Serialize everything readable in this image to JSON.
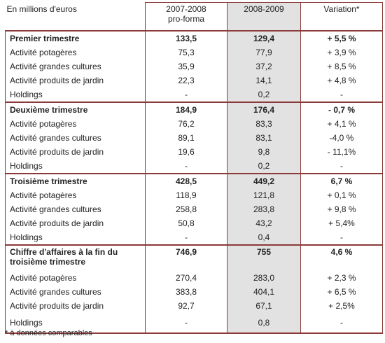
{
  "header": {
    "unit": "En millions d'euros",
    "columns": [
      [
        "2007-2008",
        "pro-forma"
      ],
      [
        "2008-2009"
      ],
      [
        "Variation*"
      ]
    ]
  },
  "sections": [
    {
      "rows": [
        [
          "Premier trimestre",
          "133,5",
          "129,4",
          "+ 5,5 %"
        ],
        [
          "Activité potagères",
          "75,3",
          "77,9",
          "+ 3,9 %"
        ],
        [
          "Activité grandes cultures",
          "35,9",
          "37,2",
          "+ 8,5 %"
        ],
        [
          "Activité produits de jardin",
          "22,3",
          "14,1",
          "+ 4,8 %"
        ],
        [
          "Holdings",
          "-",
          "0,2",
          "-"
        ]
      ]
    },
    {
      "rows": [
        [
          "Deuxième trimestre",
          "184,9",
          "176,4",
          "- 0,7 %"
        ],
        [
          "Activité potagères",
          "76,2",
          "83,3",
          "+ 4,1 %"
        ],
        [
          "Activité grandes cultures",
          "89,1",
          "83,1",
          "-4,0 %"
        ],
        [
          "Activité produits de jardin",
          "19,6",
          "9,8",
          "- 11,1%"
        ],
        [
          "Holdings",
          "-",
          "0,2",
          "-"
        ]
      ]
    },
    {
      "rows": [
        [
          "Troisième trimestre",
          "428,5",
          "449,2",
          "6,7 %"
        ],
        [
          "Activité potagères",
          "118,9",
          "121,8",
          "+ 0,1 %"
        ],
        [
          "Activité grandes cultures",
          "258,8",
          "283,8",
          "+ 9,8 %"
        ],
        [
          "Activité produits de jardin",
          "50,8",
          "43,2",
          "+ 5,4%"
        ],
        [
          "Holdings",
          "-",
          "0,4",
          "-"
        ]
      ]
    },
    {
      "rows": [
        [
          "Chiffre d'affaires à la fin du troisième trimestre",
          "746,9",
          "755",
          "4,6 %"
        ],
        [
          "Activité potagères",
          "270,4",
          "283,0",
          "+ 2,3 %"
        ],
        [
          "Activité grandes cultures",
          "383,8",
          "404,1",
          "+ 6,5 %"
        ],
        [
          "Activité produits de jardin",
          "92,7",
          "67,1",
          "+ 2,5%"
        ],
        [
          "Holdings",
          "-",
          "0,8",
          "-"
        ]
      ]
    }
  ],
  "footnote": "* à données comparables"
}
